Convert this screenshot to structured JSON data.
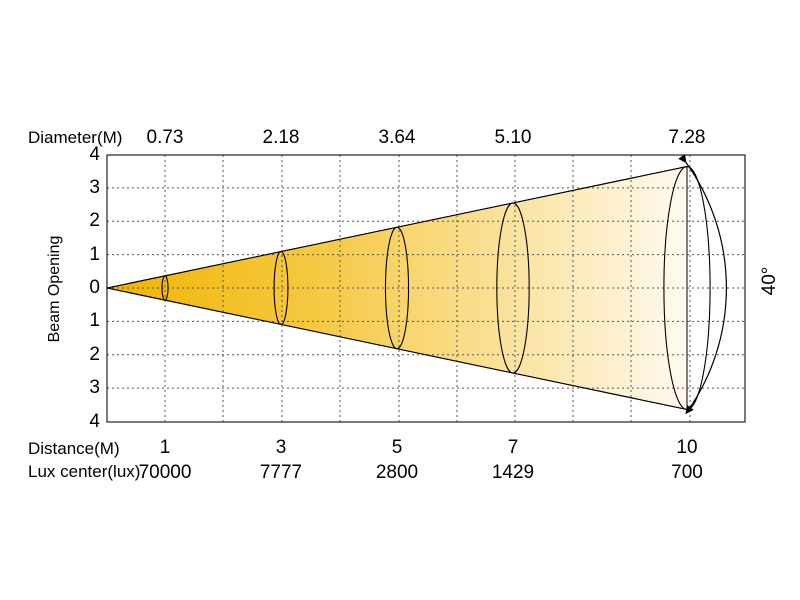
{
  "chart_data": {
    "type": "beam-angle",
    "ylabel": "Beam Opening",
    "diameter_label": "Diameter(M)",
    "distance_label": "Distance(M)",
    "lux_label": "Lux center(lux)",
    "angle_label": "40°",
    "y_ticks": [
      "4",
      "3",
      "2",
      "1",
      "0",
      "1",
      "2",
      "3",
      "4"
    ],
    "points": [
      {
        "distance": "1",
        "diameter": "0.73",
        "lux": "70000",
        "d": 1,
        "dia": 0.73
      },
      {
        "distance": "3",
        "diameter": "2.18",
        "lux": "7777",
        "d": 3,
        "dia": 2.18
      },
      {
        "distance": "5",
        "diameter": "3.64",
        "lux": "2800",
        "d": 5,
        "dia": 3.64
      },
      {
        "distance": "7",
        "diameter": "5.10",
        "lux": "1429",
        "d": 7,
        "dia": 5.1
      },
      {
        "distance": "10",
        "diameter": "7.28",
        "lux": "700",
        "d": 10,
        "dia": 7.28
      }
    ],
    "xlim": [
      0,
      11
    ],
    "ylim": [
      -4,
      4
    ],
    "grid": true,
    "colors": {
      "beam_start": "#f0b400",
      "beam_end": "#fffaf0",
      "grid": "#555555"
    }
  }
}
